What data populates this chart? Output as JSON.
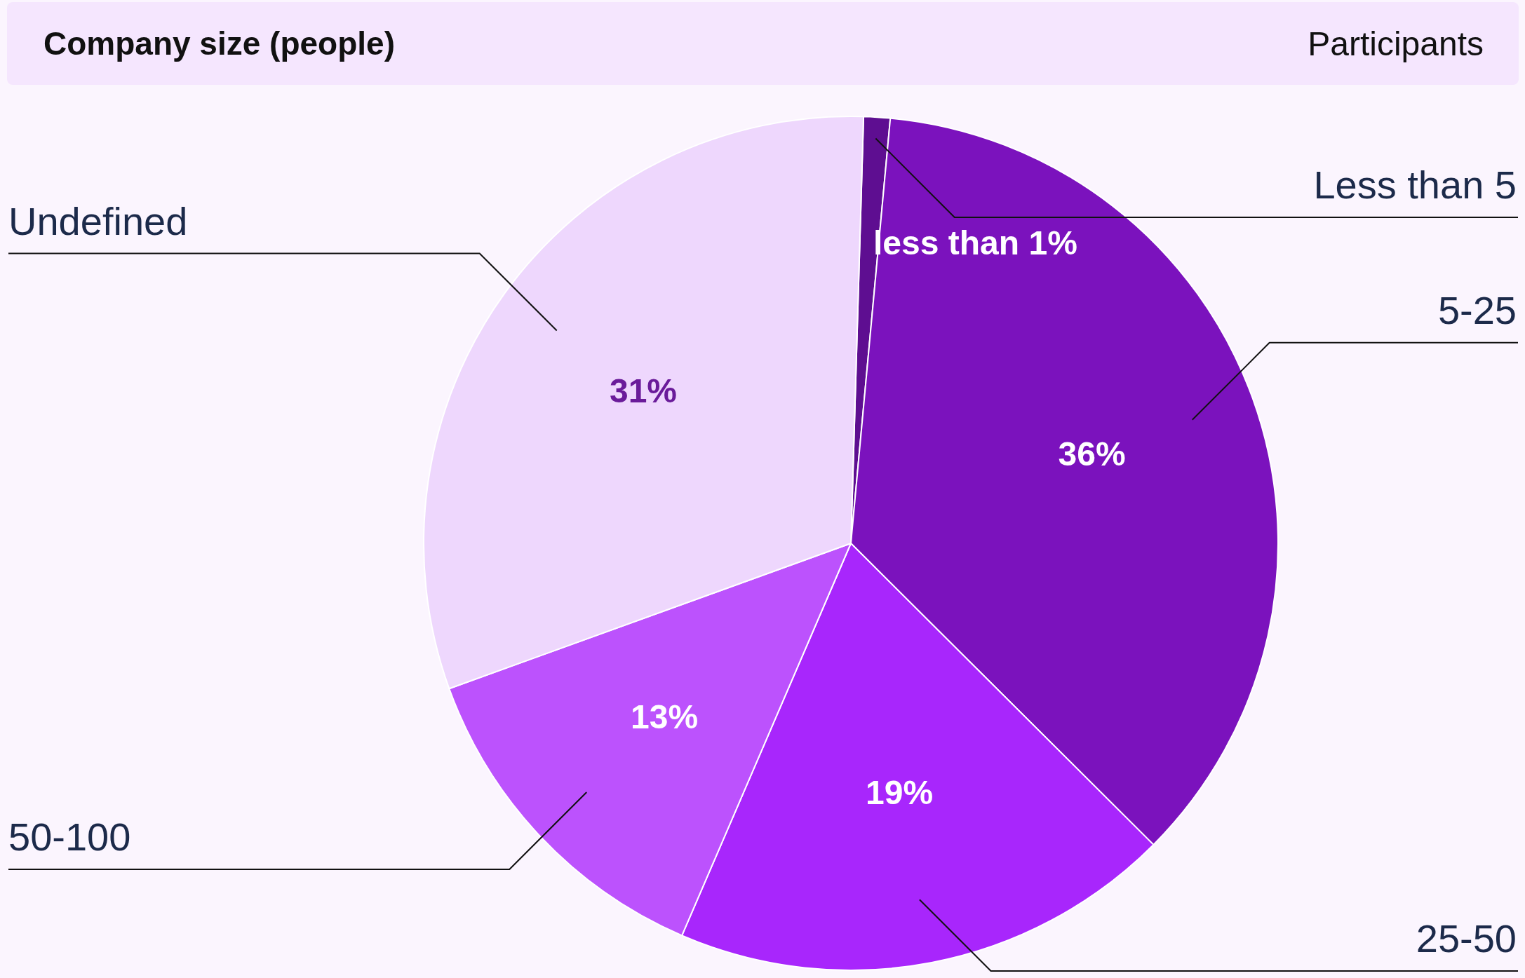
{
  "chart_data": {
    "type": "pie",
    "title": "Company size (people)",
    "subtitle": "Participants",
    "categories": [
      "Less than 5",
      "5-25",
      "25-50",
      "50-100",
      "Undefined"
    ],
    "values": [
      1,
      36,
      19,
      13,
      31
    ],
    "colors": [
      "#5e0e91",
      "#7b12bd",
      "#a826fc",
      "#bc52fd",
      "#eed7fd"
    ],
    "value_labels": [
      "less than 1%",
      "36%",
      "19%",
      "13%",
      "31%"
    ],
    "legend": false
  }
}
